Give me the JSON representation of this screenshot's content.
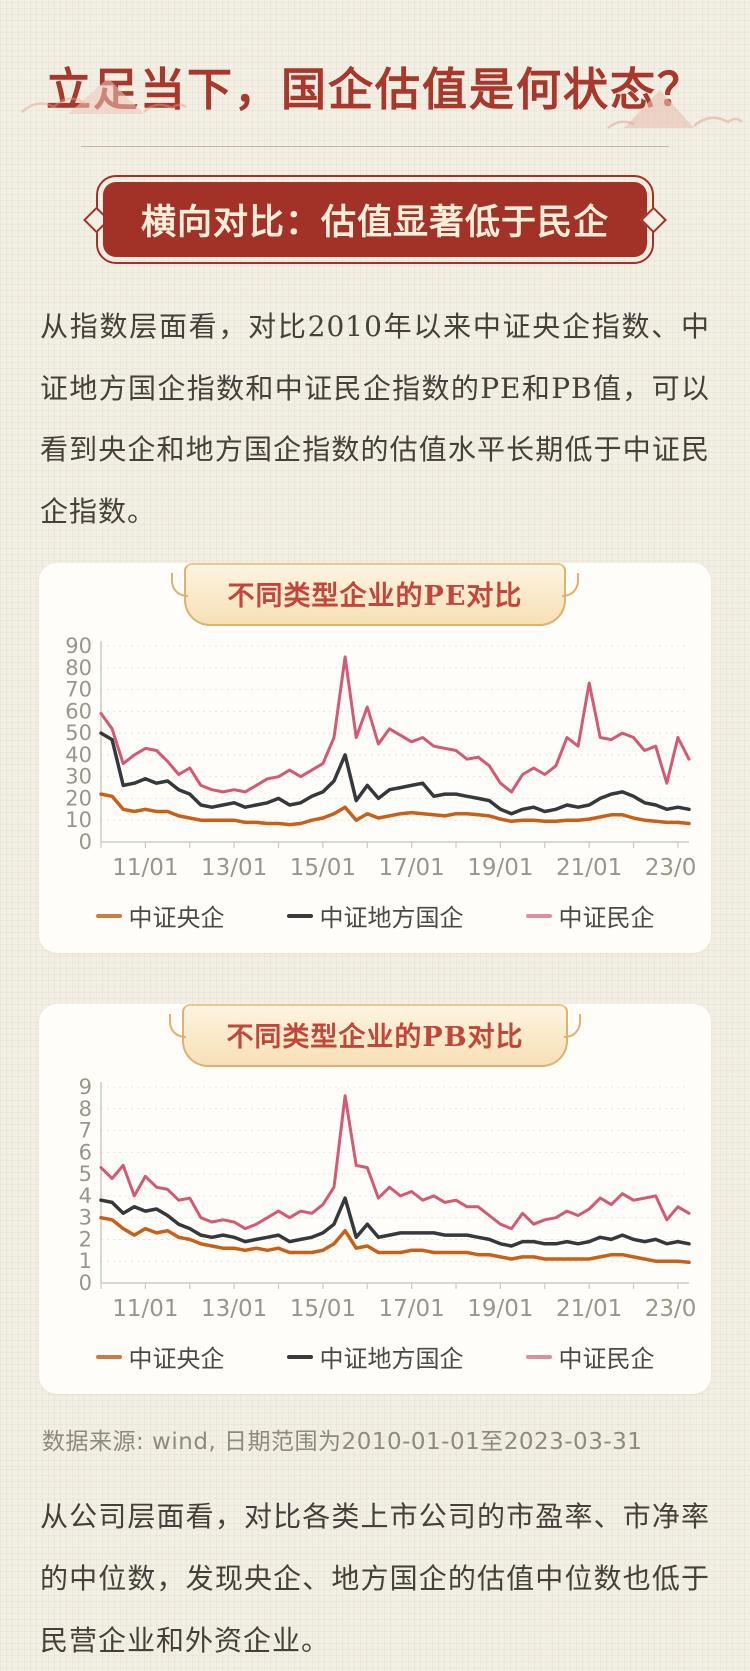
{
  "page": {
    "title": "立足当下，国企估值是何状态？",
    "badge": "横向对比：估值显著低于民企",
    "paragraph1": "从指数层面看，对比2010年以来中证央企指数、中证地方国企指数和中证民企指数的PE和PB值，可以看到央企和地方国企指数的估值水平长期低于中证民企指数。",
    "source_note": "数据来源: wind, 日期范围为2010-01-01至2023-03-31",
    "paragraph2": "从公司层面看，对比各类上市公司的市盈率、市净率的中位数，发现央企、地方国企的估值中位数也低于民营企业和外资企业。"
  },
  "colors": {
    "title_red": "#a8372c",
    "badge_red": "#a23227",
    "badge_text": "#f8eed9",
    "plaque_border_gold": "#ddb36e",
    "plaque_text_red": "#c1473a",
    "card_bg": "#fffdf9",
    "page_bg": "#f2efe5",
    "axis_gray": "#cfcabf",
    "label_gray": "#9b968c",
    "line_central_soe": "#c96017",
    "line_local_soe": "#36393c",
    "line_private": "#d45a73"
  },
  "chart_data": [
    {
      "type": "line",
      "title": "不同类型企业的PE对比",
      "ylabel": "PE",
      "ylim": [
        0,
        90
      ],
      "ytick_step": 10,
      "grid": "horizontal-dotted",
      "legend_position": "bottom",
      "x_unit": "decimal_year",
      "x_start": 2010.0,
      "x_step": 0.25,
      "xticks": [
        {
          "x": 2011,
          "label": "11/01"
        },
        {
          "x": 2013,
          "label": "13/01"
        },
        {
          "x": 2015,
          "label": "15/01"
        },
        {
          "x": 2017,
          "label": "17/01"
        },
        {
          "x": 2019,
          "label": "19/01"
        },
        {
          "x": 2021,
          "label": "21/01"
        },
        {
          "x": 2023,
          "label": "23/01"
        }
      ],
      "series": [
        {
          "name": "中证央企",
          "color": "#c96017",
          "legend_color": "#cf7a3f",
          "width": 3.5,
          "values": [
            22,
            21,
            15,
            14,
            15,
            14,
            14,
            12,
            11,
            10,
            10,
            10,
            10,
            9,
            9,
            8.5,
            8.5,
            8,
            8.5,
            10,
            11,
            13,
            16,
            10,
            13,
            11,
            12,
            13,
            13.5,
            13,
            12.5,
            12,
            13,
            13,
            12.5,
            12,
            10.5,
            9.5,
            10,
            10,
            9.5,
            9.5,
            10,
            10,
            10.5,
            11.5,
            12.5,
            12.5,
            11,
            10,
            9.5,
            9,
            9,
            8.5
          ]
        },
        {
          "name": "中证地方国企",
          "color": "#36393c",
          "legend_color": "#3a3a3a",
          "width": 3.5,
          "values": [
            50,
            47,
            26,
            27,
            29,
            27,
            28,
            24,
            22,
            17,
            16,
            17,
            18,
            16,
            17,
            18,
            20,
            17,
            18,
            21,
            23,
            28,
            40,
            19,
            26,
            20,
            24,
            25,
            26,
            27,
            21,
            22,
            22,
            21,
            20,
            19,
            15,
            13,
            15,
            16,
            14,
            15,
            17,
            16,
            17,
            20,
            22,
            23,
            21,
            18,
            17,
            15,
            16,
            15
          ]
        },
        {
          "name": "中证民企",
          "color": "#d45a73",
          "legend_color": "#dd8ea1",
          "width": 3,
          "values": [
            59,
            52,
            36,
            40,
            43,
            42,
            37,
            31,
            34,
            26,
            24,
            23,
            24,
            23,
            26,
            29,
            30,
            33,
            30,
            33,
            36,
            48,
            85,
            48,
            62,
            45,
            52,
            49,
            46,
            48,
            44,
            43,
            42,
            38,
            39,
            35,
            27,
            23,
            31,
            34,
            31,
            35,
            48,
            44,
            73,
            48,
            47,
            50,
            48,
            42,
            44,
            27,
            48,
            38
          ]
        }
      ]
    },
    {
      "type": "line",
      "title": "不同类型企业的PB对比",
      "ylabel": "PB",
      "ylim": [
        0,
        9
      ],
      "ytick_step": 1,
      "grid": "horizontal-dotted",
      "legend_position": "bottom",
      "x_unit": "decimal_year",
      "x_start": 2010.0,
      "x_step": 0.25,
      "xticks": [
        {
          "x": 2011,
          "label": "11/01"
        },
        {
          "x": 2013,
          "label": "13/01"
        },
        {
          "x": 2015,
          "label": "15/01"
        },
        {
          "x": 2017,
          "label": "17/01"
        },
        {
          "x": 2019,
          "label": "19/01"
        },
        {
          "x": 2021,
          "label": "21/01"
        },
        {
          "x": 2023,
          "label": "23/01"
        }
      ],
      "series": [
        {
          "name": "中证央企",
          "color": "#c96017",
          "legend_color": "#cf7a3f",
          "width": 3.5,
          "values": [
            3.0,
            2.9,
            2.5,
            2.2,
            2.5,
            2.3,
            2.4,
            2.1,
            2.0,
            1.8,
            1.7,
            1.6,
            1.6,
            1.5,
            1.6,
            1.5,
            1.6,
            1.4,
            1.4,
            1.4,
            1.5,
            1.8,
            2.4,
            1.6,
            1.7,
            1.4,
            1.4,
            1.4,
            1.5,
            1.5,
            1.4,
            1.4,
            1.4,
            1.4,
            1.3,
            1.3,
            1.2,
            1.1,
            1.2,
            1.2,
            1.1,
            1.1,
            1.1,
            1.1,
            1.1,
            1.2,
            1.3,
            1.3,
            1.2,
            1.1,
            1.0,
            1.0,
            1.0,
            0.95
          ]
        },
        {
          "name": "中证地方国企",
          "color": "#36393c",
          "legend_color": "#3a3a3a",
          "width": 3.5,
          "values": [
            3.8,
            3.7,
            3.2,
            3.5,
            3.3,
            3.4,
            3.1,
            2.7,
            2.5,
            2.2,
            2.1,
            2.2,
            2.1,
            1.9,
            2.0,
            2.1,
            2.2,
            1.9,
            2.0,
            2.1,
            2.3,
            2.7,
            3.9,
            2.1,
            2.7,
            2.1,
            2.2,
            2.3,
            2.3,
            2.3,
            2.3,
            2.2,
            2.2,
            2.2,
            2.1,
            2.0,
            1.8,
            1.7,
            1.9,
            1.9,
            1.8,
            1.8,
            1.9,
            1.8,
            1.9,
            2.1,
            2.0,
            2.2,
            2.0,
            1.9,
            2.0,
            1.8,
            1.9,
            1.8
          ]
        },
        {
          "name": "中证民企",
          "color": "#d45a73",
          "legend_color": "#dd8ea1",
          "width": 3,
          "values": [
            5.3,
            4.8,
            5.4,
            4.0,
            4.9,
            4.4,
            4.3,
            3.8,
            3.9,
            3.0,
            2.8,
            2.9,
            2.8,
            2.5,
            2.7,
            3.0,
            3.3,
            3.0,
            3.3,
            3.2,
            3.6,
            4.4,
            8.6,
            5.4,
            5.3,
            3.9,
            4.4,
            4.0,
            4.2,
            3.8,
            4.0,
            3.7,
            3.8,
            3.5,
            3.5,
            3.1,
            2.7,
            2.5,
            3.2,
            2.7,
            2.9,
            3.0,
            3.3,
            3.1,
            3.4,
            3.9,
            3.6,
            4.1,
            3.8,
            3.9,
            4.0,
            2.9,
            3.5,
            3.2
          ]
        }
      ]
    }
  ]
}
